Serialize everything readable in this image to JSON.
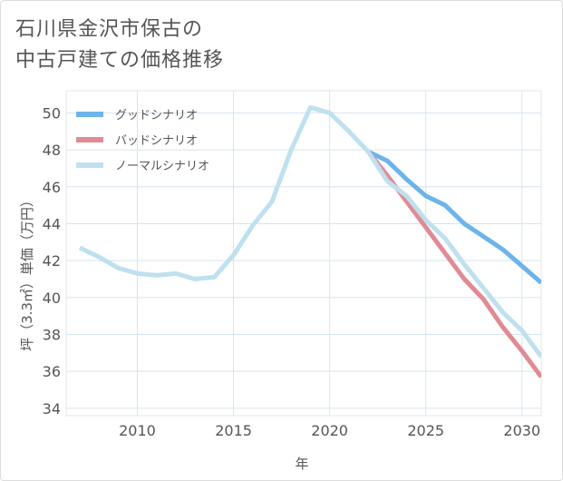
{
  "title_lines": [
    "石川県金沢市保古の",
    "中古戸建ての価格推移"
  ],
  "chart_data": {
    "type": "line",
    "title": "石川県金沢市保古の中古戸建ての価格推移",
    "xlabel": "年",
    "ylabel": "坪（3.3㎡）単価（万円）",
    "xlim": [
      2006.3,
      2031
    ],
    "ylim": [
      33.6,
      51.2
    ],
    "xticks": [
      2010,
      2015,
      2020,
      2025,
      2030
    ],
    "yticks": [
      34,
      36,
      38,
      40,
      42,
      44,
      46,
      48,
      50
    ],
    "grid": true,
    "legend_position": "top-left",
    "series": [
      {
        "name": "グッドシナリオ",
        "color": "#6cb4ea",
        "x": [
          2022,
          2023,
          2024,
          2025,
          2026,
          2027,
          2028,
          2029,
          2030,
          2031
        ],
        "values": [
          47.9,
          47.4,
          46.4,
          45.5,
          45.0,
          44.0,
          43.3,
          42.6,
          41.7,
          40.8
        ]
      },
      {
        "name": "バッドシナリオ",
        "color": "#e08b94",
        "x": [
          2022,
          2023,
          2024,
          2025,
          2026,
          2027,
          2028,
          2029,
          2030,
          2031
        ],
        "values": [
          47.9,
          46.6,
          45.2,
          43.8,
          42.4,
          41.0,
          39.9,
          38.4,
          37.1,
          35.7
        ]
      },
      {
        "name": "ノーマルシナリオ",
        "color": "#bfe0ef",
        "x": [
          2007,
          2008,
          2009,
          2010,
          2011,
          2012,
          2013,
          2014,
          2015,
          2016,
          2017,
          2018,
          2019,
          2020,
          2021,
          2022,
          2023,
          2024,
          2025,
          2026,
          2027,
          2028,
          2029,
          2030,
          2031
        ],
        "values": [
          42.7,
          42.2,
          41.6,
          41.3,
          41.2,
          41.3,
          41.0,
          41.1,
          42.3,
          43.9,
          45.2,
          48.0,
          50.3,
          50.0,
          49.0,
          47.9,
          46.3,
          45.5,
          44.2,
          43.2,
          41.8,
          40.5,
          39.2,
          38.2,
          36.8
        ]
      }
    ]
  }
}
